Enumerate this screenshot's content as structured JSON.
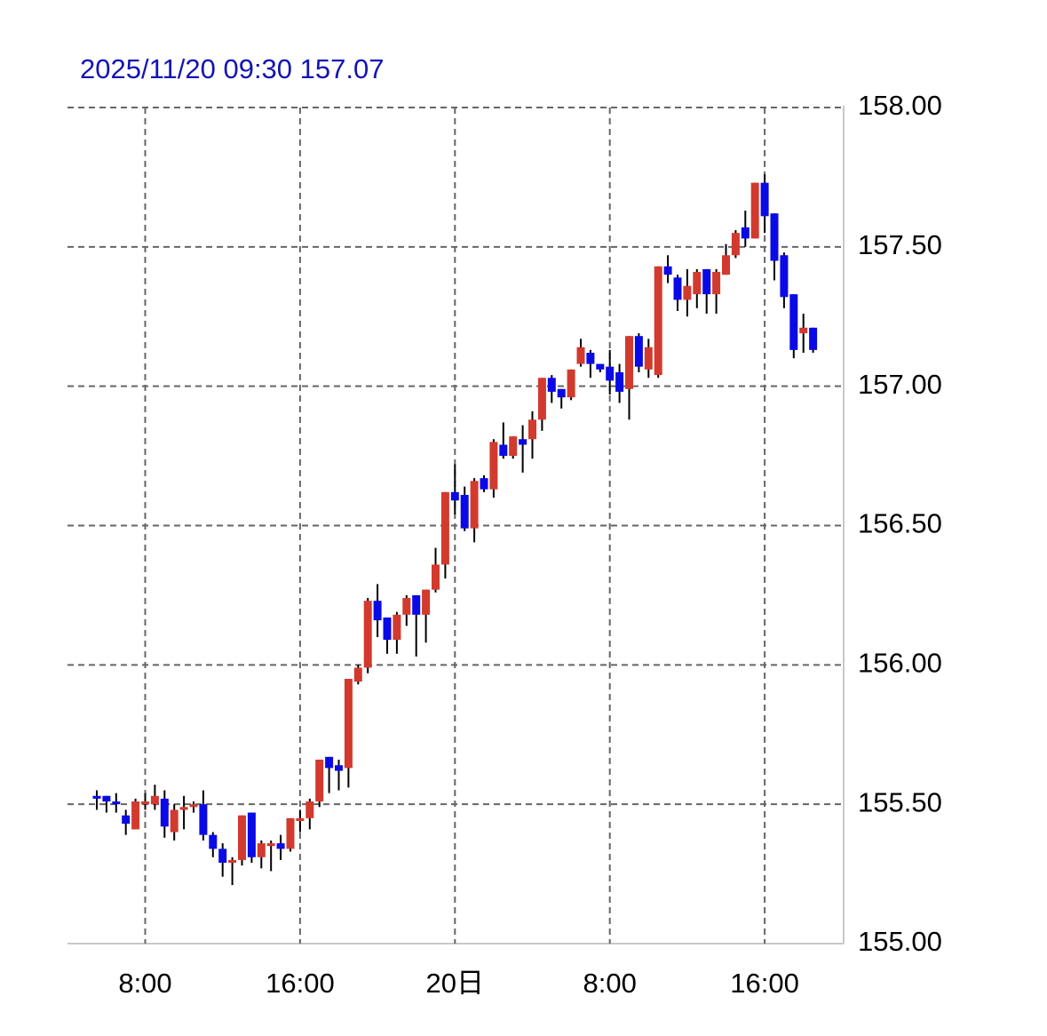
{
  "chart_data": {
    "type": "candlestick",
    "title": "2025/11/20 09:30 157.07",
    "categories": [
      null,
      null,
      null,
      null,
      null,
      "8:00",
      null,
      null,
      null,
      null,
      null,
      null,
      null,
      null,
      null,
      null,
      null,
      null,
      null,
      null,
      null,
      "16:00",
      null,
      null,
      null,
      null,
      null,
      null,
      null,
      null,
      null,
      null,
      null,
      null,
      null,
      null,
      null,
      "20日",
      null,
      null,
      null,
      null,
      null,
      null,
      null,
      null,
      null,
      null,
      null,
      null,
      null,
      null,
      null,
      "8:00",
      null,
      null,
      null,
      null,
      null,
      null,
      null,
      null,
      null,
      null,
      null,
      null,
      null,
      null,
      null,
      "16:00",
      null,
      null,
      null,
      null,
      null
    ],
    "open": [
      155.53,
      155.53,
      155.51,
      155.46,
      155.41,
      155.5,
      155.5,
      155.52,
      155.4,
      155.48,
      155.49,
      155.5,
      155.39,
      155.34,
      155.29,
      155.3,
      155.47,
      155.31,
      155.35,
      155.36,
      155.34,
      155.44,
      155.45,
      155.51,
      155.67,
      155.64,
      155.63,
      155.94,
      155.99,
      156.23,
      156.17,
      156.09,
      156.18,
      156.25,
      156.18,
      156.27,
      156.36,
      156.62,
      156.61,
      156.49,
      156.67,
      156.63,
      156.79,
      156.75,
      156.81,
      156.81,
      156.88,
      157.03,
      156.99,
      156.96,
      157.08,
      157.12,
      157.08,
      157.07,
      157.05,
      156.99,
      157.18,
      157.06,
      157.04,
      157.43,
      157.39,
      157.31,
      157.33,
      157.42,
      157.33,
      157.4,
      157.47,
      157.57,
      157.53,
      157.73,
      157.62,
      157.47,
      157.33,
      157.19,
      157.21
    ],
    "high": [
      155.55,
      155.53,
      155.54,
      155.48,
      155.52,
      155.54,
      155.57,
      155.55,
      155.5,
      155.53,
      155.51,
      155.55,
      155.4,
      155.36,
      155.31,
      155.46,
      155.47,
      155.37,
      155.37,
      155.39,
      155.45,
      155.48,
      155.52,
      155.66,
      155.67,
      155.66,
      155.95,
      156.0,
      156.24,
      156.29,
      156.17,
      156.19,
      156.25,
      156.25,
      156.27,
      156.42,
      156.62,
      156.72,
      156.64,
      156.67,
      156.68,
      156.81,
      156.87,
      156.82,
      156.86,
      156.91,
      157.03,
      157.04,
      156.99,
      157.06,
      157.17,
      157.13,
      157.08,
      157.13,
      157.08,
      157.18,
      157.19,
      157.17,
      157.43,
      157.47,
      157.4,
      157.42,
      157.42,
      157.42,
      157.42,
      157.51,
      157.56,
      157.63,
      157.73,
      157.76,
      157.62,
      157.48,
      157.33,
      157.26,
      157.21
    ],
    "low": [
      155.48,
      155.47,
      155.47,
      155.39,
      155.41,
      155.48,
      155.48,
      155.38,
      155.37,
      155.41,
      155.47,
      155.37,
      155.31,
      155.24,
      155.21,
      155.28,
      155.29,
      155.27,
      155.26,
      155.3,
      155.33,
      155.4,
      155.41,
      155.49,
      155.54,
      155.55,
      155.56,
      155.93,
      155.97,
      156.1,
      156.04,
      156.04,
      156.14,
      156.03,
      156.08,
      156.26,
      156.31,
      156.54,
      156.48,
      156.44,
      156.62,
      156.6,
      156.74,
      156.74,
      156.69,
      156.74,
      156.84,
      156.94,
      156.92,
      156.95,
      157.07,
      157.03,
      157.05,
      156.97,
      156.94,
      156.88,
      157.05,
      157.03,
      157.03,
      157.37,
      157.27,
      157.25,
      157.28,
      157.26,
      157.26,
      157.4,
      157.46,
      157.5,
      157.53,
      157.55,
      157.38,
      157.28,
      157.1,
      157.12,
      157.12
    ],
    "close": [
      155.52,
      155.51,
      155.5,
      155.43,
      155.51,
      155.51,
      155.53,
      155.42,
      155.48,
      155.49,
      155.5,
      155.39,
      155.34,
      155.29,
      155.3,
      155.46,
      155.31,
      155.36,
      155.36,
      155.34,
      155.45,
      155.45,
      155.51,
      155.66,
      155.63,
      155.62,
      155.95,
      155.99,
      156.23,
      156.16,
      156.09,
      156.18,
      156.24,
      156.18,
      156.27,
      156.36,
      156.62,
      156.59,
      156.49,
      156.66,
      156.63,
      156.8,
      156.75,
      156.82,
      156.79,
      156.88,
      157.03,
      156.98,
      156.96,
      157.06,
      157.14,
      157.08,
      157.06,
      157.02,
      156.98,
      157.18,
      157.07,
      157.14,
      157.43,
      157.4,
      157.31,
      157.36,
      157.41,
      157.33,
      157.41,
      157.47,
      157.55,
      157.53,
      157.73,
      157.61,
      157.45,
      157.32,
      157.13,
      157.21,
      157.13
    ],
    "up_color": "#d23a2e",
    "down_color": "#0a0ae6",
    "ylim": [
      155.0,
      158.0
    ],
    "yticks": [
      {
        "value": 155.0,
        "label": "155.00"
      },
      {
        "value": 155.5,
        "label": "155.50"
      },
      {
        "value": 156.0,
        "label": "156.00"
      },
      {
        "value": 156.5,
        "label": "156.50"
      },
      {
        "value": 157.0,
        "label": "157.00"
      },
      {
        "value": 157.5,
        "label": "157.50"
      },
      {
        "value": 158.0,
        "label": "158.00"
      }
    ],
    "grid": true
  }
}
